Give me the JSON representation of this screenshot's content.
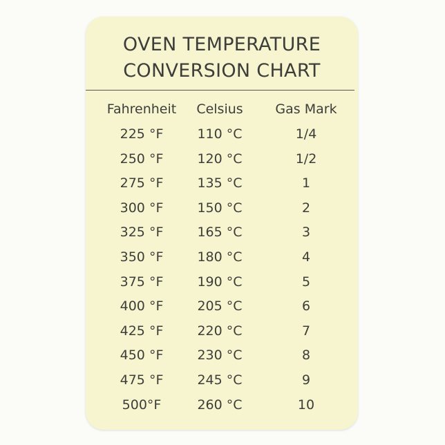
{
  "title_line1": "OVEN TEMPERATURE",
  "title_line2": "CONVERSION CHART",
  "headers": [
    "Fahrenheit",
    "Celsius",
    "Gas Mark"
  ],
  "rows": [
    [
      "225 °F",
      "110 °C",
      "1/4"
    ],
    [
      "250 °F",
      "120 °C",
      "1/2"
    ],
    [
      "275 °F",
      "135 °C",
      "1"
    ],
    [
      "300 °F",
      "150 °C",
      "2"
    ],
    [
      "325 °F",
      "165 °C",
      "3"
    ],
    [
      "350 °F",
      "180 °C",
      "4"
    ],
    [
      "375 °F",
      "190 °C",
      "5"
    ],
    [
      "400 °F",
      "205 °C",
      "6"
    ],
    [
      "425 °F",
      "220 °C",
      "7"
    ],
    [
      "450 °F",
      "230 °C",
      "8"
    ],
    [
      "475 °F",
      "245 °C",
      "9"
    ],
    [
      "500°F",
      "260 °C",
      "10"
    ]
  ],
  "colors": {
    "card": "#f6f5cf",
    "text": "#3d3d3a"
  }
}
